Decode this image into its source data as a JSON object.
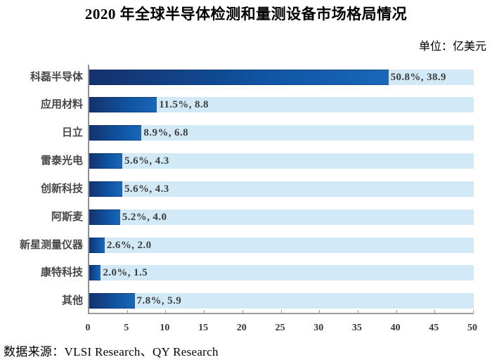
{
  "page": {
    "title": "2020 年全球半导体检测和量测设备市场格局情况",
    "unit_label": "单位：亿美元",
    "source": "数据来源：VLSI Research、QY Research"
  },
  "chart_data": {
    "type": "bar",
    "orientation": "horizontal",
    "title": "2020 年全球半导体检测和量测设备市场格局情况",
    "unit": "亿美元",
    "categories": [
      "科磊半导体",
      "应用材料",
      "日立",
      "雷泰光电",
      "创新科技",
      "阿斯麦",
      "新星测量仪器",
      "康特科技",
      "其他"
    ],
    "values": [
      38.9,
      8.8,
      6.8,
      4.3,
      4.3,
      4.0,
      2.0,
      1.5,
      5.9
    ],
    "percents": [
      "50.8%",
      "11.5%",
      "8.9%",
      "5.6%",
      "5.6%",
      "5.2%",
      "2.6%",
      "2.0%",
      "7.8%"
    ],
    "data_labels": [
      "50.8%, 38.9",
      "11.5%, 8.8",
      "8.9%, 6.8",
      "5.6%, 4.3",
      "5.6%, 4.3",
      "5.2%, 4.0",
      "2.6%, 2.0",
      "2.0%, 1.5",
      "7.8%, 5.9"
    ],
    "xlabel": "",
    "ylabel": "",
    "xlim": [
      0,
      50
    ],
    "x_ticks": [
      "0",
      "5",
      "10",
      "15",
      "20",
      "25",
      "30",
      "35",
      "40",
      "45",
      "50"
    ],
    "legend": "none",
    "grid": "off",
    "colors": {
      "bar_gradient_left": "#15316c",
      "bar_gradient_mid": "#0f55a3",
      "bar_gradient_right": "#1b67b9",
      "row_band": "#d2e9f7",
      "value_label": "#3e3e3e",
      "category_label": "#474747",
      "axis_line": "#9b9b9b",
      "tick_label": "#383838"
    }
  }
}
